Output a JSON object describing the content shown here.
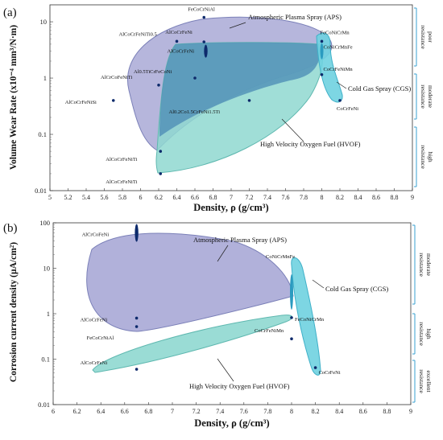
{
  "charts": [
    {
      "panel_label": "(a)",
      "ylabel": "Volume Wear Rate (x10⁻⁴ mm³/N·m)",
      "xlabel": "Density, ρ (g/cm³)",
      "xticks": [
        "5",
        "5.2",
        "5.4",
        "5.6",
        "5.8",
        "6",
        "6.2",
        "6.4",
        "6.6",
        "6.8",
        "7",
        "7.2",
        "7.4",
        "7.6",
        "7.8",
        "8",
        "8.2",
        "8.4",
        "8.6",
        "8.8",
        "9"
      ],
      "yticks": [
        "0.01",
        "0.1",
        "1",
        "10"
      ],
      "side_bands": [
        [
          "poor",
          "resistance"
        ],
        [
          "moderate",
          "resistance"
        ],
        [
          "high",
          "resistance"
        ]
      ],
      "region_labels": {
        "aps": "Atmospheric Plasma Spray (APS)",
        "cgs": "Cold Gas Spray (CGS)",
        "hvof": "High Velocity Oxygen Fuel (HVOF)"
      },
      "point_labels": [
        "FeCoCrNiAl",
        "AlCoCrFeNi",
        "AlCoCrFeNi",
        "AlCoCrFeNiTi0.5",
        "Al0.5TiCrFeCoNi",
        "AlCrCoFeNiTi",
        "AlCoCrFeNiSi",
        "AlCoCrFeNiTi",
        "AlCoCrFeNiTi",
        "Al0.2Co1.5CrFeNi1.5Ti",
        "FeCoNiCrMn",
        "CoNiCrMnFe",
        "CoCrFeNiMn",
        "CoCrFeNi"
      ]
    },
    {
      "panel_label": "(b)",
      "ylabel": "Corrosion current density (µA/cm²)",
      "xlabel": "Density, ρ (g/cm³)",
      "xticks": [
        "6",
        "6.2",
        "6.4",
        "6.6",
        "6.8",
        "7",
        "7.2",
        "7.4",
        "7.6",
        "7.8",
        "8",
        "8.2",
        "8.4",
        "8.6",
        "8.8",
        "9"
      ],
      "yticks": [
        "0.01",
        "0.1",
        "1",
        "10",
        "100"
      ],
      "side_bands": [
        [
          "moderate",
          "resistance"
        ],
        [
          "high",
          "resistance"
        ],
        [
          "excellent",
          "resistance"
        ]
      ],
      "region_labels": {
        "aps": "Atmospheric Plasma Spray (APS)",
        "cgs": "Cold Gas Spray (CGS)",
        "hvof": "High Velocity Oxygen Fuel (HVOF)"
      },
      "point_labels": [
        "AlCrCoFeNi",
        "AlCoCrFeNi",
        "FeCoCrNiAl",
        "CoCrFeNiMn",
        "AlCoCrFeNi",
        "CoNiCrMnFe",
        "FeCoNiCrMn",
        "CoCrFeNi"
      ]
    }
  ],
  "chart_data": [
    {
      "type": "scatter",
      "x_scale": "linear",
      "y_scale": "log",
      "xlim": [
        5,
        9
      ],
      "ylim": [
        0.01,
        20
      ],
      "points": [
        {
          "label": "FeCoCrNiAl",
          "x": 6.7,
          "y": 12
        },
        {
          "label": "AlCoCrFeNi",
          "x": 6.7,
          "y": 4.4
        },
        {
          "label": "AlCoCrFeNi",
          "x": 6.72,
          "y": 3.0
        },
        {
          "label": "AlCoCrFeNiTi0.5",
          "x": 6.4,
          "y": 4.5
        },
        {
          "label": "Al0.5TiCrFeCoNi",
          "x": 6.6,
          "y": 1.0
        },
        {
          "label": "AlCrCoFeNiTi",
          "x": 6.2,
          "y": 0.75
        },
        {
          "label": "AlCoCrFeNiSi",
          "x": 5.7,
          "y": 0.4
        },
        {
          "label": "AlCoCrFeNiTi",
          "x": 6.22,
          "y": 0.05
        },
        {
          "label": "AlCoCrFeNiTi",
          "x": 6.22,
          "y": 0.02
        },
        {
          "label": "Al0.2Co1.5CrFeNi1.5Ti",
          "x": 7.2,
          "y": 0.4
        },
        {
          "label": "FeCoNiCrMn",
          "x": 8.0,
          "y": 4.5
        },
        {
          "label": "CoNiCrMnFe",
          "x": 8.0,
          "y": 3.0
        },
        {
          "label": "CoCrFeNiMn",
          "x": 8.0,
          "y": 1.15
        },
        {
          "label": "CoCrFeNi",
          "x": 8.2,
          "y": 0.4
        }
      ]
    },
    {
      "type": "scatter",
      "x_scale": "linear",
      "y_scale": "log",
      "xlim": [
        6,
        9
      ],
      "ylim": [
        0.01,
        100
      ],
      "points": [
        {
          "label": "AlCrCoFeNi",
          "x": 6.7,
          "y": 60
        },
        {
          "label": "AlCoCrFeNi",
          "x": 6.7,
          "y": 0.8
        },
        {
          "label": "FeCoCrNiAl",
          "x": 6.7,
          "y": 0.52
        },
        {
          "label": "CoCrFeNiMn",
          "x": 8.0,
          "y": 0.28
        },
        {
          "label": "AlCoCrFeNi",
          "x": 6.7,
          "y": 0.06
        },
        {
          "label": "CoNiCrMnFe",
          "x": 8.0,
          "y": 3.0
        },
        {
          "label": "FeCoNiCrMn",
          "x": 8.0,
          "y": 0.82
        },
        {
          "label": "CoCrFeNi",
          "x": 8.2,
          "y": 0.065
        }
      ]
    }
  ],
  "colors": {
    "aps_fill": "#9b9fd0",
    "aps_stroke": "#7b80b8",
    "hvof_fill": "#8fd8d0",
    "hvof_stroke": "#5fb8b0",
    "cgs_fill": "#6fd2e0",
    "overlap_fill": "#4f8fb6",
    "marker": "#0d2a6b",
    "band": "#3aa0d0"
  }
}
